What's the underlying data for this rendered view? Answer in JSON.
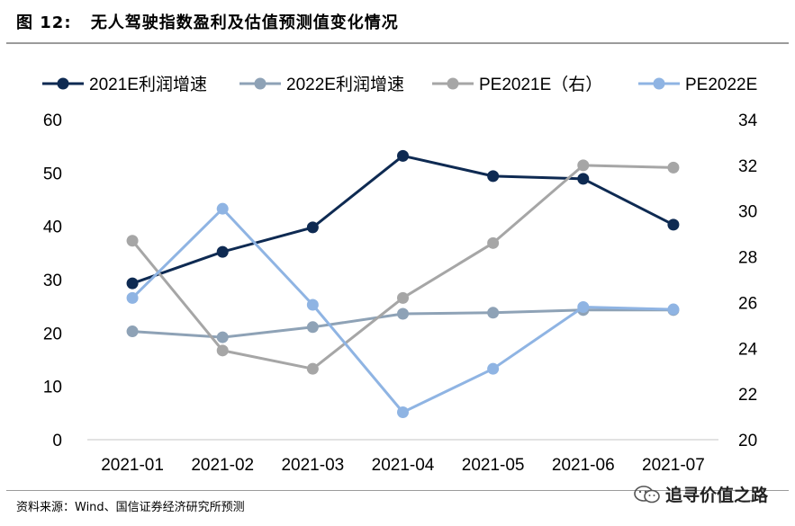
{
  "figure": {
    "label": "图",
    "number": "12:",
    "title": "无人驾驶指数盈利及估值预测值变化情况"
  },
  "source": "资料来源：Wind、国信证券经济研究所预测",
  "watermark": {
    "text": "追寻价值之路",
    "icon": "wechat-icon"
  },
  "chart_data": {
    "type": "line",
    "categories": [
      "2021-01",
      "2021-02",
      "2021-03",
      "2021-04",
      "2021-05",
      "2021-06",
      "2021-07"
    ],
    "y_left": {
      "ylim": [
        0,
        60
      ],
      "ticks": [
        0,
        10,
        20,
        30,
        40,
        50,
        60
      ]
    },
    "y_right": {
      "ylim": [
        20,
        34
      ],
      "ticks": [
        20,
        22,
        24,
        26,
        28,
        30,
        32,
        34
      ]
    },
    "grid": false,
    "legend_position": "top",
    "series": [
      {
        "name": "2021E利润增速",
        "axis": "left",
        "color": "#0e2a52",
        "values": [
          29.3,
          35.2,
          39.8,
          53.2,
          49.4,
          48.9,
          40.3
        ]
      },
      {
        "name": "2022E利润增速",
        "axis": "left",
        "color": "#8ea2b6",
        "values": [
          20.3,
          19.2,
          21.1,
          23.6,
          23.8,
          24.3,
          24.3
        ]
      },
      {
        "name": "PE2021E（右）",
        "axis": "right",
        "color": "#a6a6a6",
        "values": [
          28.7,
          23.9,
          23.1,
          26.2,
          28.6,
          32.0,
          31.9
        ]
      },
      {
        "name": "PE2022E",
        "axis": "right",
        "color": "#8fb4e3",
        "values": [
          26.2,
          30.1,
          25.9,
          21.2,
          23.1,
          25.8,
          25.7
        ]
      }
    ]
  }
}
